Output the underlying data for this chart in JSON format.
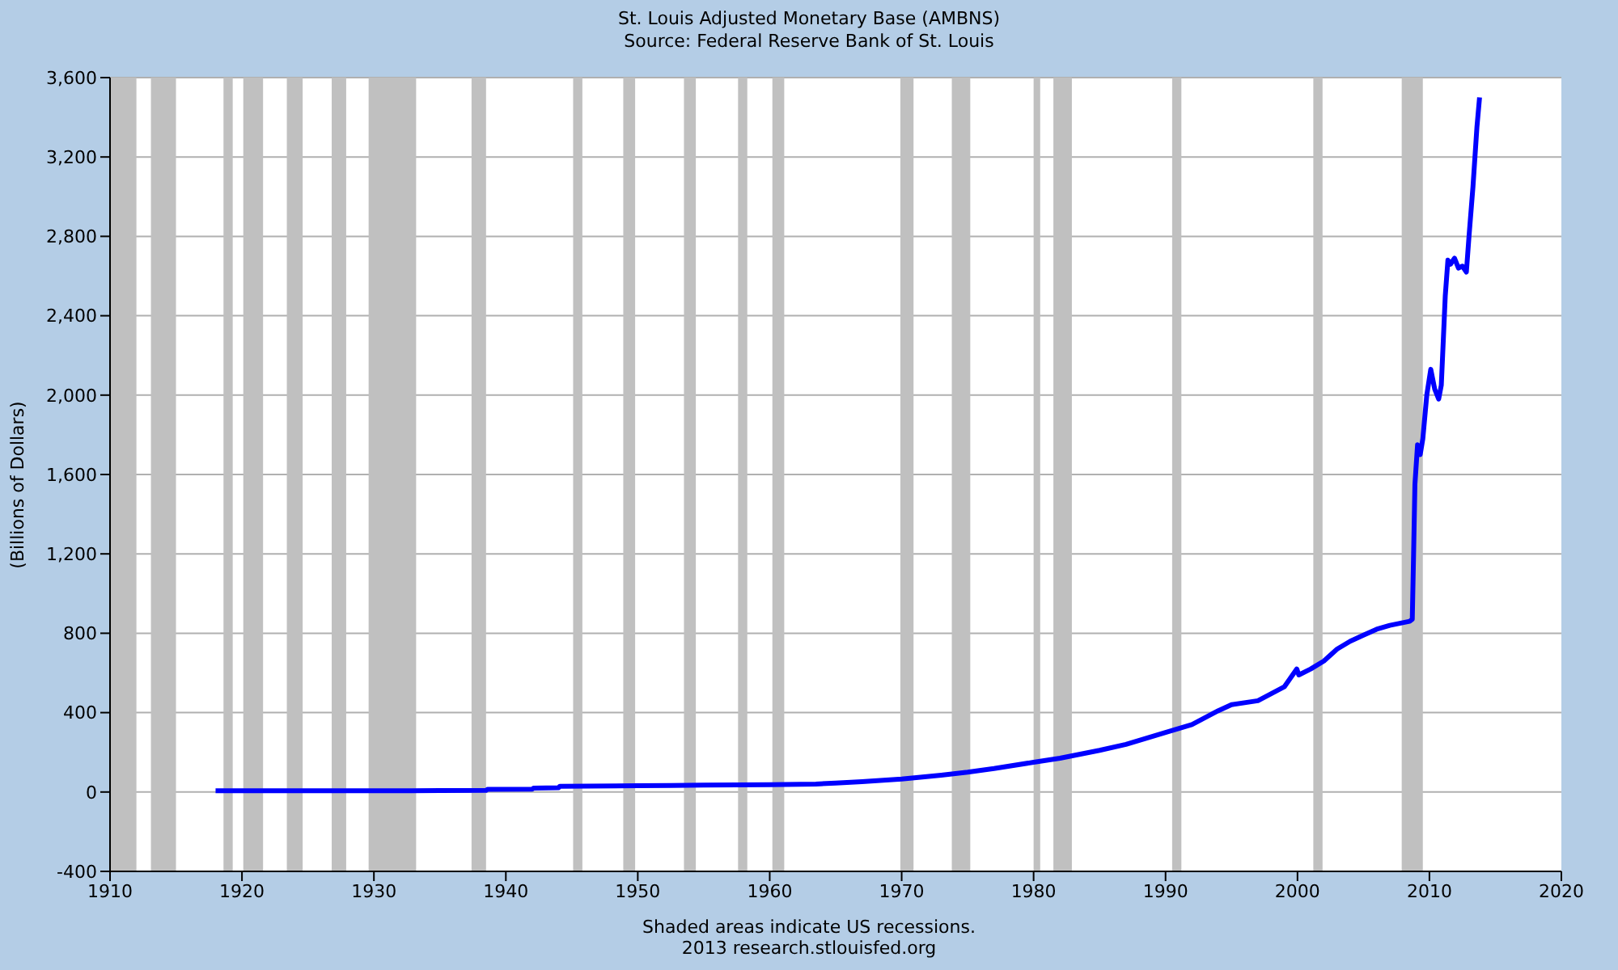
{
  "chart_data": {
    "type": "line",
    "title": "St. Louis Adjusted Monetary Base (AMBNS)",
    "subtitle": "Source: Federal Reserve Bank of St. Louis",
    "ylabel": "(Billions of Dollars)",
    "annotations": [
      "Shaded areas indicate US recessions.",
      "2013 research.stlouisfed.org"
    ],
    "x": [
      1918,
      1925,
      1930,
      1935,
      1938.5,
      1938.6,
      1942,
      1942.1,
      1944,
      1944.1,
      1950,
      1952.5,
      1955,
      1960,
      1963.5,
      1965,
      1967,
      1970,
      1973,
      1975,
      1977,
      1980,
      1982,
      1985,
      1987,
      1990,
      1992,
      1994,
      1995,
      1997,
      1999,
      1999.95,
      2000.1,
      2001,
      2002,
      2003,
      2004,
      2005,
      2006,
      2007,
      2008.5,
      2008.7,
      2008.8,
      2008.9,
      2009.1,
      2009.3,
      2009.5,
      2009.8,
      2010.1,
      2010.4,
      2010.7,
      2010.9,
      2011.2,
      2011.4,
      2011.6,
      2011.9,
      2012.2,
      2012.5,
      2012.8,
      2013.0,
      2013.3,
      2013.6,
      2013.8
    ],
    "series": [
      {
        "color": "#0000ff",
        "values": [
          6,
          6,
          6,
          7,
          8,
          13,
          14,
          20,
          22,
          29,
          32,
          33,
          35,
          37,
          40,
          45,
          52,
          65,
          85,
          100,
          118,
          150,
          170,
          210,
          240,
          300,
          340,
          410,
          440,
          460,
          530,
          620,
          590,
          620,
          660,
          720,
          760,
          790,
          820,
          840,
          860,
          870,
          1200,
          1550,
          1750,
          1700,
          1780,
          2000,
          2130,
          2030,
          1980,
          2050,
          2500,
          2680,
          2660,
          2690,
          2640,
          2650,
          2620,
          2800,
          3050,
          3350,
          3500
        ]
      }
    ],
    "xlim": [
      1910,
      2020
    ],
    "xticks": [
      1910,
      1920,
      1930,
      1940,
      1950,
      1960,
      1970,
      1980,
      1990,
      2000,
      2010,
      2020
    ],
    "ylim": [
      -400,
      3600
    ],
    "yticks": [
      -400,
      0,
      400,
      800,
      {
        "value": 1200,
        "label": "1,200"
      },
      {
        "value": 1600,
        "label": "1,600"
      },
      {
        "value": 2000,
        "label": "2,000"
      },
      {
        "value": 2400,
        "label": "2,400"
      },
      {
        "value": 2800,
        "label": "2,800"
      },
      {
        "value": 3200,
        "label": "3,200"
      },
      {
        "value": 3600,
        "label": "3,600"
      }
    ],
    "grid": "y",
    "bands": [
      {
        "axis": "x",
        "from": 1910,
        "to": 1912,
        "color": "#c0c0c0"
      },
      {
        "axis": "x",
        "from": 1913.1,
        "to": 1915,
        "color": "#c0c0c0"
      },
      {
        "axis": "x",
        "from": 1918.6,
        "to": 1919.3,
        "color": "#c0c0c0"
      },
      {
        "axis": "x",
        "from": 1920.1,
        "to": 1921.6,
        "color": "#c0c0c0"
      },
      {
        "axis": "x",
        "from": 1923.4,
        "to": 1924.6,
        "color": "#c0c0c0"
      },
      {
        "axis": "x",
        "from": 1926.8,
        "to": 1927.9,
        "color": "#c0c0c0"
      },
      {
        "axis": "x",
        "from": 1929.6,
        "to": 1933.2,
        "color": "#c0c0c0"
      },
      {
        "axis": "x",
        "from": 1937.4,
        "to": 1938.5,
        "color": "#c0c0c0"
      },
      {
        "axis": "x",
        "from": 1945.1,
        "to": 1945.8,
        "color": "#c0c0c0"
      },
      {
        "axis": "x",
        "from": 1948.9,
        "to": 1949.8,
        "color": "#c0c0c0"
      },
      {
        "axis": "x",
        "from": 1953.5,
        "to": 1954.4,
        "color": "#c0c0c0"
      },
      {
        "axis": "x",
        "from": 1957.6,
        "to": 1958.3,
        "color": "#c0c0c0"
      },
      {
        "axis": "x",
        "from": 1960.2,
        "to": 1961.1,
        "color": "#c0c0c0"
      },
      {
        "axis": "x",
        "from": 1969.9,
        "to": 1970.9,
        "color": "#c0c0c0"
      },
      {
        "axis": "x",
        "from": 1973.8,
        "to": 1975.2,
        "color": "#c0c0c0"
      },
      {
        "axis": "x",
        "from": 1980,
        "to": 1980.5,
        "color": "#c0c0c0"
      },
      {
        "axis": "x",
        "from": 1981.5,
        "to": 1982.9,
        "color": "#c0c0c0"
      },
      {
        "axis": "x",
        "from": 1990.5,
        "to": 1991.2,
        "color": "#c0c0c0"
      },
      {
        "axis": "x",
        "from": 2001.2,
        "to": 2001.9,
        "color": "#c0c0c0"
      },
      {
        "axis": "x",
        "from": 2007.9,
        "to": 2009.5,
        "color": "#c0c0c0"
      }
    ]
  }
}
